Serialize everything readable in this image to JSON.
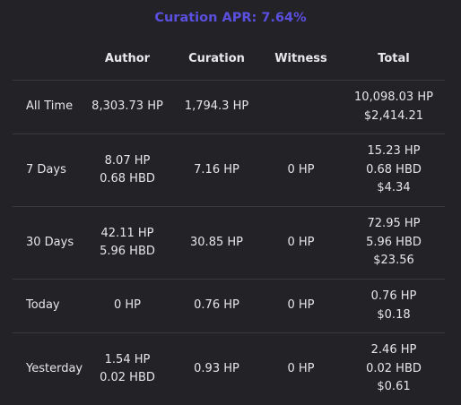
{
  "title": "Curation APR: 7.64%",
  "columns": [
    "",
    "Author",
    "Curation",
    "Witness",
    "Total"
  ],
  "rows": [
    {
      "label": "All Time",
      "author": [
        "8,303.73 HP"
      ],
      "curation": [
        "1,794.3 HP"
      ],
      "witness": [],
      "total": [
        "10,098.03 HP",
        "$2,414.21"
      ]
    },
    {
      "label": "7 Days",
      "author": [
        "8.07 HP",
        "0.68 HBD"
      ],
      "curation": [
        "7.16 HP"
      ],
      "witness": [
        "0 HP"
      ],
      "total": [
        "15.23 HP",
        "0.68 HBD",
        "$4.34"
      ]
    },
    {
      "label": "30 Days",
      "author": [
        "42.11 HP",
        "5.96 HBD"
      ],
      "curation": [
        "30.85 HP"
      ],
      "witness": [
        "0 HP"
      ],
      "total": [
        "72.95 HP",
        "5.96 HBD",
        "$23.56"
      ]
    },
    {
      "label": "Today",
      "author": [
        "0 HP"
      ],
      "curation": [
        "0.76 HP"
      ],
      "witness": [
        "0 HP"
      ],
      "total": [
        "0.76 HP",
        "$0.18"
      ]
    },
    {
      "label": "Yesterday",
      "author": [
        "1.54 HP",
        "0.02 HBD"
      ],
      "curation": [
        "0.93 HP"
      ],
      "witness": [
        "0 HP"
      ],
      "total": [
        "2.46 HP",
        "0.02 HBD",
        "$0.61"
      ]
    }
  ]
}
